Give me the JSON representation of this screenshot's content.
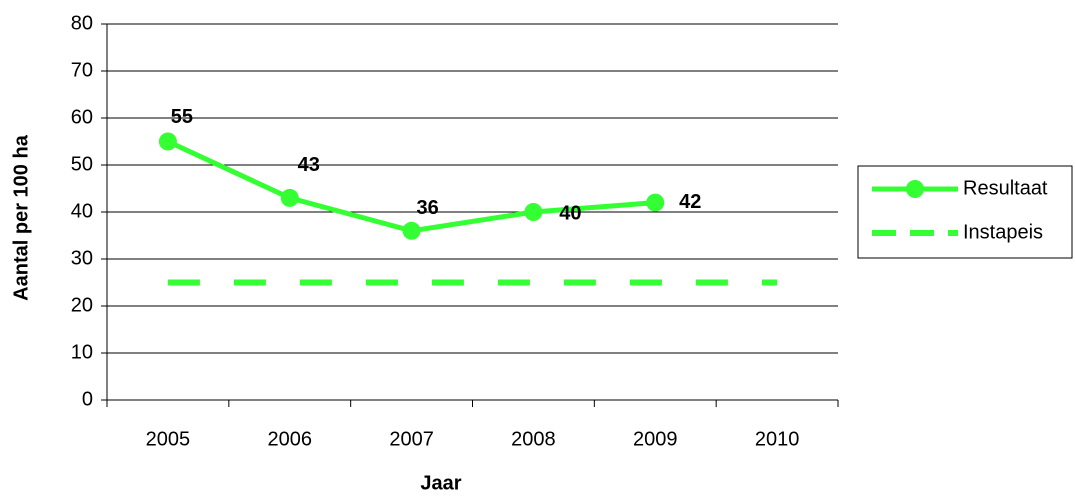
{
  "chart_data": {
    "type": "line",
    "x_label": "Jaar",
    "y_label": "Aantal per 100 ha",
    "categories": [
      "2005",
      "2006",
      "2007",
      "2008",
      "2009",
      "2010"
    ],
    "series": [
      {
        "name": "Resultaat",
        "color": "#33ff33",
        "values": [
          55,
          43,
          36,
          40,
          42,
          null
        ],
        "style": "solid-markers"
      },
      {
        "name": "Instapeis",
        "color": "#33ff33",
        "values": [
          25,
          25,
          25,
          25,
          25,
          25
        ],
        "style": "dashed"
      }
    ],
    "data_labels_series": 0,
    "ylim": [
      0,
      80
    ],
    "yticks": [
      0,
      10,
      20,
      30,
      40,
      50,
      60,
      70,
      80
    ],
    "grid": true,
    "legend": "right"
  }
}
